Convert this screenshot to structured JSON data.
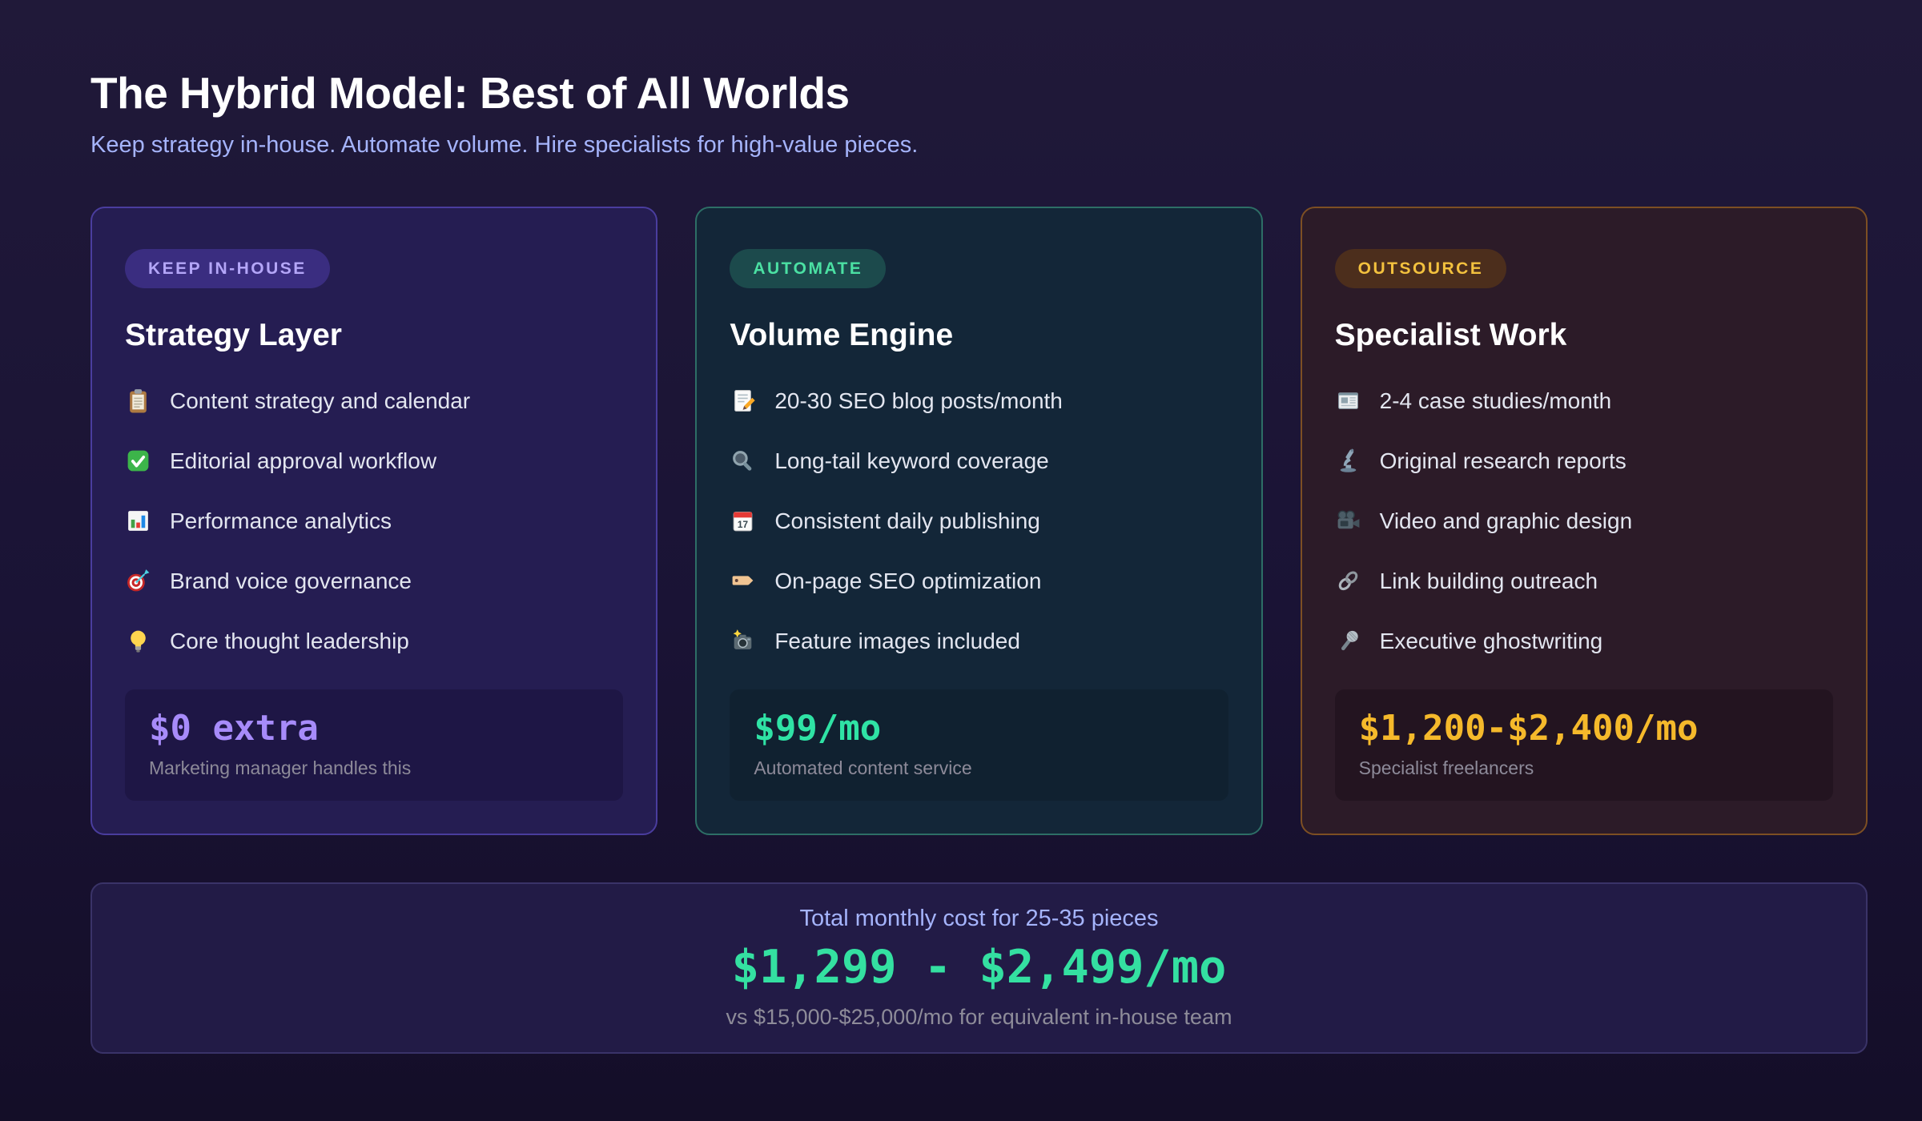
{
  "page": {
    "title": "The Hybrid Model: Best of All Worlds",
    "subtitle": "Keep strategy in-house. Automate volume. Hire specialists for high-value pieces."
  },
  "cards": [
    {
      "id": "keep-in-house",
      "badge": "KEEP IN-HOUSE",
      "title": "Strategy Layer",
      "items": [
        {
          "icon": "clipboard-icon",
          "label": "Content strategy and calendar"
        },
        {
          "icon": "check-mark-icon",
          "label": "Editorial approval workflow"
        },
        {
          "icon": "bar-chart-icon",
          "label": "Performance analytics"
        },
        {
          "icon": "target-icon",
          "label": "Brand voice governance"
        },
        {
          "icon": "light-bulb-icon",
          "label": "Core thought leadership"
        }
      ],
      "price": "$0 extra",
      "price_note": "Marketing manager handles this",
      "colors": {
        "card_bg": "#251d52",
        "card_border": "#4a3d9e",
        "badge_bg": "#3a2d80",
        "badge_text": "#b4a6f8",
        "price": "#a78bfa",
        "price_box_bg": "#1e1645"
      }
    },
    {
      "id": "automate",
      "badge": "AUTOMATE",
      "title": "Volume Engine",
      "items": [
        {
          "icon": "memo-icon",
          "label": "20-30 SEO blog posts/month"
        },
        {
          "icon": "magnifying-glass-icon",
          "label": "Long-tail keyword coverage"
        },
        {
          "icon": "calendar-icon",
          "label": "Consistent daily publishing"
        },
        {
          "icon": "label-tag-icon",
          "label": "On-page SEO optimization"
        },
        {
          "icon": "camera-flash-icon",
          "label": "Feature images included"
        }
      ],
      "price": "$99/mo",
      "price_note": "Automated content service",
      "colors": {
        "card_bg": "#132638",
        "card_border": "#2d6e66",
        "badge_bg": "#1c4a4c",
        "badge_text": "#4be0a3",
        "price": "#2fe3a5",
        "price_box_bg": "#102130"
      }
    },
    {
      "id": "outsource",
      "badge": "OUTSOURCE",
      "title": "Specialist Work",
      "items": [
        {
          "icon": "newspaper-icon",
          "label": "2-4 case studies/month"
        },
        {
          "icon": "microscope-icon",
          "label": "Original research reports"
        },
        {
          "icon": "movie-camera-icon",
          "label": "Video and graphic design"
        },
        {
          "icon": "link-icon",
          "label": "Link building outreach"
        },
        {
          "icon": "microphone-icon",
          "label": "Executive ghostwriting"
        }
      ],
      "price": "$1,200-$2,400/mo",
      "price_note": "Specialist freelancers",
      "colors": {
        "card_bg": "#2c1b28",
        "card_border": "#7d4f23",
        "badge_bg": "#4c2e1c",
        "badge_text": "#f3c13e",
        "price": "#f5b92b",
        "price_box_bg": "#231420"
      }
    }
  ],
  "summary": {
    "caption": "Total monthly cost for 25-35 pieces",
    "price_range": "$1,299 - $2,499/mo",
    "comparison": "vs $15,000-$25,000/mo for equivalent in-house team",
    "colors": {
      "caption": "#a5b4fc",
      "price": "#34e0a1",
      "comparison": "#8e8c99"
    }
  }
}
